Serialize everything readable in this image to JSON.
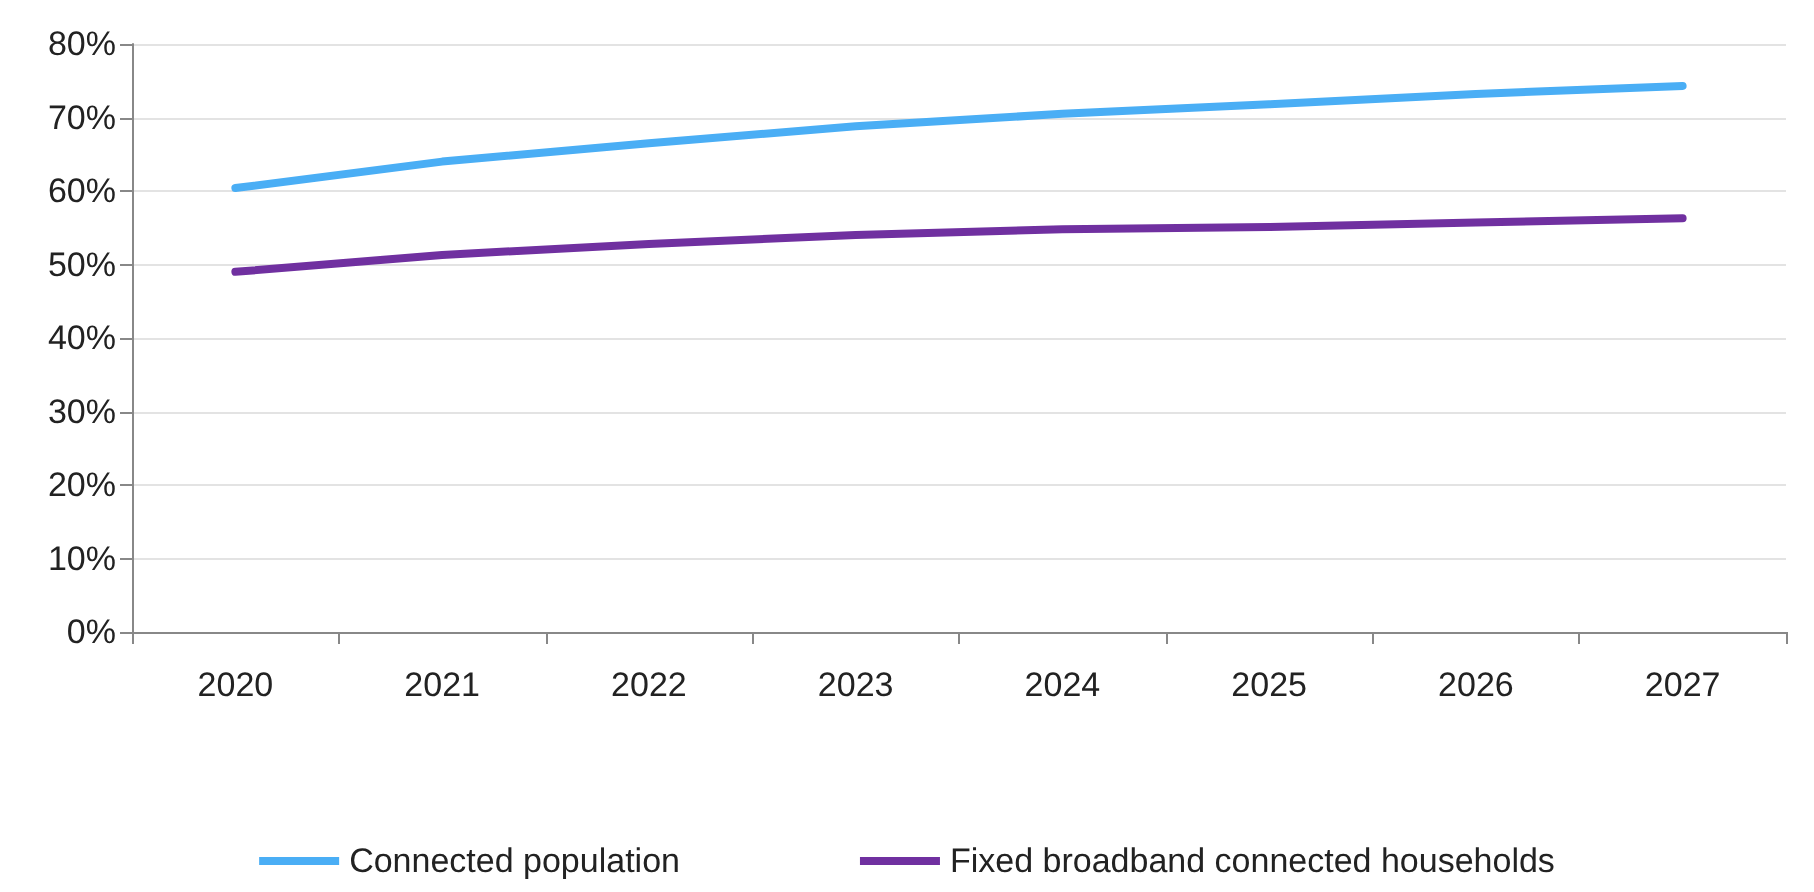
{
  "chart_data": {
    "type": "line",
    "categories": [
      "2020",
      "2021",
      "2022",
      "2023",
      "2024",
      "2025",
      "2026",
      "2027"
    ],
    "series": [
      {
        "name": "Connected population",
        "color": "#4aaef5",
        "values": [
          60.4,
          64,
          66.5,
          68.8,
          70.5,
          71.8,
          73.2,
          74.3
        ]
      },
      {
        "name": "Fixed broadband connected households",
        "color": "#7030a0",
        "values": [
          49,
          51.3,
          52.8,
          54,
          54.8,
          55.1,
          55.7,
          56.3
        ]
      }
    ],
    "ylim": [
      0,
      80
    ],
    "yticks": [
      {
        "value": 0,
        "label": "0%"
      },
      {
        "value": 10,
        "label": "10%"
      },
      {
        "value": 20,
        "label": "20%"
      },
      {
        "value": 30,
        "label": "30%"
      },
      {
        "value": 40,
        "label": "40%"
      },
      {
        "value": 50,
        "label": "50%"
      },
      {
        "value": 60,
        "label": "60%"
      },
      {
        "value": 70,
        "label": "70%"
      },
      {
        "value": 80,
        "label": "80%"
      }
    ],
    "grid": "y",
    "legend": "bottom",
    "marker": "none",
    "line_style": "solid"
  }
}
